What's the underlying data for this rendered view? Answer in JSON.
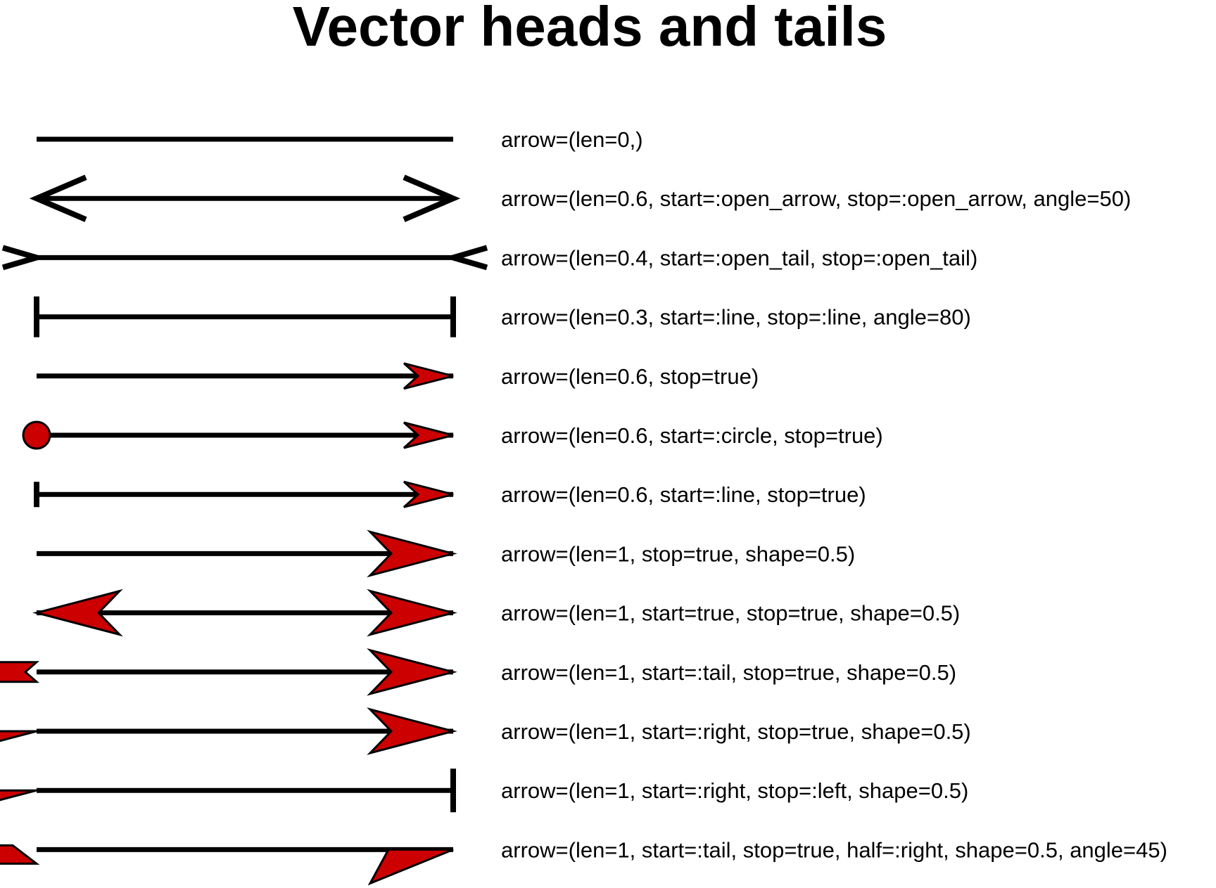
{
  "title": "Vector heads and tails",
  "colors": {
    "line": "#000000",
    "fill": "#cc0000",
    "background": "#ffffff"
  },
  "rows": [
    {
      "label": "arrow=(len=0,)",
      "start": "none",
      "stop": "none"
    },
    {
      "label": "arrow=(len=0.6, start=:open_arrow, stop=:open_arrow, angle=50)",
      "start": "open_arrow",
      "stop": "open_arrow"
    },
    {
      "label": "arrow=(len=0.4, start=:open_tail, stop=:open_tail)",
      "start": "open_tail",
      "stop": "open_tail"
    },
    {
      "label": "arrow=(len=0.3, start=:line, stop=:line, angle=80)",
      "start": "line",
      "stop": "line"
    },
    {
      "label": "arrow=(len=0.6, stop=true)",
      "start": "none",
      "stop": "small_arrow"
    },
    {
      "label": "arrow=(len=0.6, start=:circle, stop=true)",
      "start": "circle",
      "stop": "small_arrow"
    },
    {
      "label": "arrow=(len=0.6, start=:line, stop=true)",
      "start": "short_line",
      "stop": "small_arrow"
    },
    {
      "label": "arrow=(len=1, stop=true, shape=0.5)",
      "start": "none",
      "stop": "big_arrow"
    },
    {
      "label": "arrow=(len=1, start=true, stop=true, shape=0.5)",
      "start": "big_arrow",
      "stop": "big_arrow"
    },
    {
      "label": "arrow=(len=1, start=:tail, stop=true, shape=0.5)",
      "start": "tail",
      "stop": "big_arrow"
    },
    {
      "label": "arrow=(len=1, start=:right, stop=true, shape=0.5)",
      "start": "half_right",
      "stop": "big_arrow"
    },
    {
      "label": "arrow=(len=1, start=:right, stop=:left, shape=0.5)",
      "start": "half_right",
      "stop": "tall_line"
    },
    {
      "label": "arrow=(len=1, start=:tail, stop=true, half=:right, shape=0.5, angle=45)",
      "start": "half_tail",
      "stop": "half_arrow"
    }
  ]
}
